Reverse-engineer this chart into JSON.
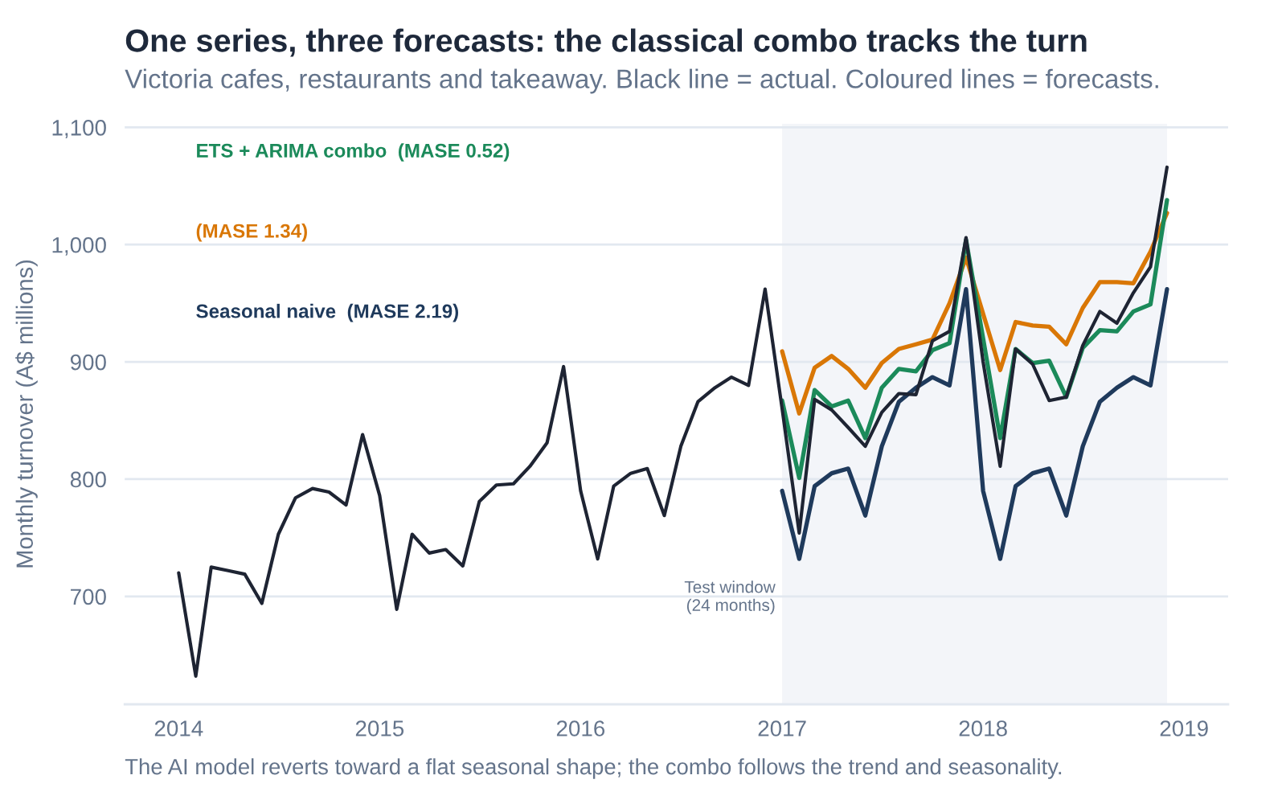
{
  "chart_data": {
    "type": "line",
    "title": "One series, three forecasts: the classical combo tracks the turn",
    "subtitle": "Victoria cafes, restaurants and takeaway. Black line = actual. Coloured lines = forecasts.",
    "ylabel": "Monthly turnover (A$ millions)",
    "annotations": [
      "The AI model reverts toward a flat seasonal shape; the combo follows the trend and seasonality."
    ],
    "x": [
      "2014-01",
      "2014-02",
      "2014-03",
      "2014-04",
      "2014-05",
      "2014-06",
      "2014-07",
      "2014-08",
      "2014-09",
      "2014-10",
      "2014-11",
      "2014-12",
      "2015-01",
      "2015-02",
      "2015-03",
      "2015-04",
      "2015-05",
      "2015-06",
      "2015-07",
      "2015-08",
      "2015-09",
      "2015-10",
      "2015-11",
      "2015-12",
      "2016-01",
      "2016-02",
      "2016-03",
      "2016-04",
      "2016-05",
      "2016-06",
      "2016-07",
      "2016-08",
      "2016-09",
      "2016-10",
      "2016-11",
      "2016-12",
      "2017-01",
      "2017-02",
      "2017-03",
      "2017-04",
      "2017-05",
      "2017-06",
      "2017-07",
      "2017-08",
      "2017-09",
      "2017-10",
      "2017-11",
      "2017-12",
      "2018-01",
      "2018-02",
      "2018-03",
      "2018-04",
      "2018-05",
      "2018-06",
      "2018-07",
      "2018-08",
      "2018-09",
      "2018-10",
      "2018-11",
      "2018-12"
    ],
    "series": [
      {
        "color": "#1f3a5c",
        "name": "Seasonal naive  (MASE 2.19)",
        "x": [
          "2017-01",
          "2017-02",
          "2017-03",
          "2017-04",
          "2017-05",
          "2017-06",
          "2017-07",
          "2017-08",
          "2017-09",
          "2017-10",
          "2017-11",
          "2017-12",
          "2018-01",
          "2018-02",
          "2018-03",
          "2018-04",
          "2018-05",
          "2018-06",
          "2018-07",
          "2018-08",
          "2018-09",
          "2018-10",
          "2018-11",
          "2018-12"
        ],
        "values": [
          790,
          732,
          794,
          805,
          809,
          769,
          828,
          866,
          878,
          887,
          880,
          962,
          790,
          732,
          794,
          805,
          809,
          769,
          828,
          866,
          878,
          887,
          880,
          962
        ]
      },
      {
        "color": "#d97706",
        "name": "(MASE 1.34)",
        "x": [
          "2017-01",
          "2017-02",
          "2017-03",
          "2017-04",
          "2017-05",
          "2017-06",
          "2017-07",
          "2017-08",
          "2017-09",
          "2017-10",
          "2017-11",
          "2017-12",
          "2018-01",
          "2018-02",
          "2018-03",
          "2018-04",
          "2018-05",
          "2018-06",
          "2018-07",
          "2018-08",
          "2018-09",
          "2018-10",
          "2018-11",
          "2018-12"
        ],
        "values": [
          909,
          856,
          895,
          905,
          894,
          878,
          899,
          911,
          915,
          919,
          950,
          989,
          941,
          893,
          934,
          931,
          930,
          915,
          946,
          968,
          968,
          967,
          994,
          1027
        ]
      },
      {
        "color": "#1b8a5a",
        "name": "ETS + ARIMA combo  (MASE 0.52)",
        "x": [
          "2017-01",
          "2017-02",
          "2017-03",
          "2017-04",
          "2017-05",
          "2017-06",
          "2017-07",
          "2017-08",
          "2017-09",
          "2017-10",
          "2017-11",
          "2017-12",
          "2018-01",
          "2018-02",
          "2018-03",
          "2018-04",
          "2018-05",
          "2018-06",
          "2018-07",
          "2018-08",
          "2018-09",
          "2018-10",
          "2018-11",
          "2018-12"
        ],
        "values": [
          867,
          801,
          876,
          862,
          867,
          835,
          878,
          894,
          892,
          910,
          916,
          1004,
          920,
          835,
          911,
          899,
          901,
          870,
          912,
          927,
          926,
          943,
          949,
          1038
        ]
      },
      {
        "color": "#1e2433",
        "values": [
          720,
          632,
          725,
          722,
          719,
          694,
          753,
          784,
          792,
          789,
          778,
          838,
          786,
          689,
          753,
          737,
          740,
          726,
          781,
          795,
          796,
          811,
          831,
          896,
          790,
          732,
          794,
          805,
          809,
          769,
          828,
          866,
          878,
          887,
          880,
          962,
          860,
          754,
          868,
          859,
          844,
          828,
          857,
          873,
          872,
          918,
          926,
          1006,
          900,
          811,
          911,
          898,
          867,
          870,
          914,
          943,
          933,
          959,
          981,
          1066
        ]
      }
    ],
    "xlim": [
      "2013-09-25",
      "2019-03-22"
    ],
    "xticks": [
      "2014",
      "2015",
      "2016",
      "2017",
      "2018",
      "2019"
    ],
    "ylim": [
      608,
      1103
    ],
    "yticks": [
      700,
      800,
      900,
      {
        "value": 1000,
        "label": "1,000"
      },
      {
        "value": 1100,
        "label": "1,100"
      }
    ],
    "bands": [
      {
        "axis": "x",
        "from": "2017-01",
        "to": "2018-12",
        "label": "Test window\n(24 months)",
        "color": "#f3f5f9"
      }
    ],
    "grid": "y",
    "legend": "top left",
    "line_style": "solid"
  }
}
